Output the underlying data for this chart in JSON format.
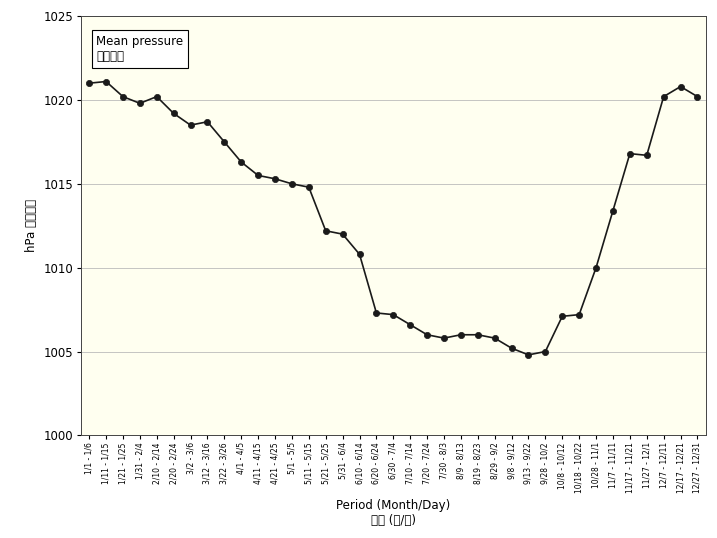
{
  "title_en": "Mean pressure",
  "title_zh": "平均氣壓",
  "xlabel_en": "Period (Month/Day)",
  "xlabel_zh": "期間 (月/日)",
  "ylabel_en": "hPa",
  "ylabel_zh": "百帕斯卡",
  "background_color": "#fffff0",
  "outer_background": "#ffffff",
  "ylim": [
    1000,
    1025
  ],
  "yticks": [
    1000,
    1005,
    1010,
    1015,
    1020,
    1025
  ],
  "line_color": "#1a1a1a",
  "marker_color": "#1a1a1a",
  "labels": [
    "1/1 - 1/6",
    "1/11 - 1/15",
    "1/21 - 1/25",
    "1/31 - 2/4",
    "2/10 - 2/14",
    "2/20 - 2/24",
    "3/2 - 3/6",
    "3/12 - 3/16",
    "3/22 - 3/26",
    "4/1 - 4/5",
    "4/11 - 4/15",
    "4/21 - 4/25",
    "5/1 - 5/5",
    "5/11 - 5/15",
    "5/21 - 5/25",
    "5/31 - 6/4",
    "6/10 - 6/14",
    "6/20 - 6/24",
    "6/30 - 7/4",
    "7/10 - 7/14",
    "7/20 - 7/24",
    "7/30 - 8/3",
    "8/9 - 8/13",
    "8/19 - 8/23",
    "8/29 - 9/2",
    "9/8 - 9/12",
    "9/13 - 9/22",
    "9/28 - 10/2",
    "10/8 - 10/12",
    "10/18 - 10/22",
    "10/28 - 11/1",
    "11/7 - 11/11",
    "11/17 - 11/21",
    "11/27 - 12/1",
    "12/7 - 12/11",
    "12/17 - 12/21",
    "12/27 - 12/31"
  ],
  "data_points": [
    1021.0,
    1021.1,
    1020.2,
    1019.8,
    1020.2,
    1019.2,
    1018.5,
    1018.7,
    1017.5,
    1016.3,
    1015.5,
    1015.3,
    1015.0,
    1014.8,
    1012.2,
    1012.0,
    1010.8,
    1007.3,
    1007.2,
    1006.6,
    1006.0,
    1005.8,
    1006.0,
    1006.0,
    1005.8,
    1005.2,
    1004.8,
    1005.0,
    1007.1,
    1007.2,
    1010.0,
    1013.4,
    1016.8,
    1016.7,
    1020.2,
    1020.8,
    1020.2
  ]
}
